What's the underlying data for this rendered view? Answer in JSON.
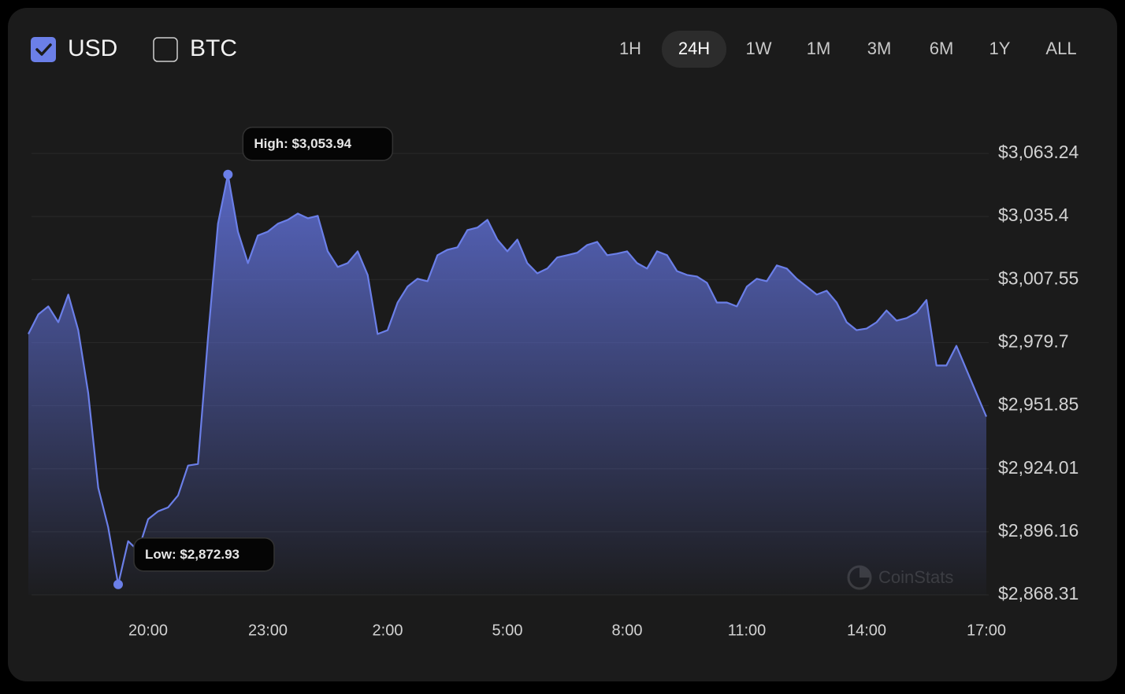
{
  "controls": {
    "currencies": [
      {
        "label": "USD",
        "checked": true
      },
      {
        "label": "BTC",
        "checked": false
      }
    ],
    "ranges": [
      "1H",
      "24H",
      "1W",
      "1M",
      "3M",
      "6M",
      "1Y",
      "ALL"
    ],
    "selected_range": "24H"
  },
  "chart_data": {
    "type": "area",
    "watermark": "CoinStats",
    "x": [
      17.0,
      17.25,
      17.5,
      17.75,
      18.0,
      18.25,
      18.5,
      18.75,
      19.0,
      19.25,
      19.5,
      19.75,
      20.0,
      20.25,
      20.5,
      20.75,
      21.0,
      21.25,
      21.5,
      21.75,
      22.0,
      22.25,
      22.5,
      22.75,
      23.0,
      23.25,
      23.5,
      23.75,
      24.0,
      24.25,
      24.5,
      24.75,
      25.0,
      25.25,
      25.5,
      25.75,
      26.0,
      26.25,
      26.5,
      26.75,
      27.0,
      27.25,
      27.5,
      27.75,
      28.0,
      28.25,
      28.5,
      28.75,
      29.0,
      29.25,
      29.5,
      29.75,
      30.0,
      30.25,
      30.5,
      30.75,
      31.0,
      31.25,
      31.5,
      31.75,
      32.0,
      32.25,
      32.5,
      32.75,
      33.0,
      33.25,
      33.5,
      33.75,
      34.0,
      34.25,
      34.5,
      34.75,
      35.0,
      35.25,
      35.5,
      35.75,
      36.0,
      36.25,
      36.5,
      36.75,
      37.0,
      37.25,
      37.5,
      37.75,
      38.0,
      38.25,
      38.5,
      38.75,
      39.0,
      39.25,
      39.5,
      39.75,
      40.0,
      40.25,
      40.5,
      40.75,
      41.0
    ],
    "series": [
      {
        "name": "Price",
        "color": "#6b7fe8",
        "values": [
          2983.5,
          2992.2,
          2995.7,
          2988.7,
          3000.9,
          2985.2,
          2957.4,
          2915.6,
          2898.2,
          2872.93,
          2892.0,
          2887.8,
          2901.7,
          2905.2,
          2906.9,
          2912.2,
          2925.4,
          2926.1,
          2981.8,
          3032.2,
          3053.94,
          3028.7,
          3014.8,
          3027.0,
          3028.7,
          3032.2,
          3033.9,
          3036.7,
          3034.6,
          3035.7,
          3020.0,
          3013.1,
          3014.8,
          3020.0,
          3009.6,
          2983.5,
          2985.2,
          2997.4,
          3004.4,
          3007.9,
          3006.8,
          3018.3,
          3020.7,
          3021.8,
          3029.4,
          3030.5,
          3033.9,
          3025.2,
          3020.0,
          3025.2,
          3014.8,
          3010.3,
          3012.4,
          3017.3,
          3018.3,
          3019.4,
          3022.8,
          3024.2,
          3018.3,
          3019.0,
          3020.0,
          3014.8,
          3012.4,
          3020.0,
          3018.3,
          3011.3,
          3009.6,
          3008.9,
          3006.1,
          2997.4,
          2997.4,
          2995.7,
          3004.4,
          3007.9,
          3006.8,
          3013.8,
          3012.4,
          3007.9,
          3004.4,
          3000.9,
          3002.6,
          2997.4,
          2988.7,
          2985.2,
          2985.9,
          2988.7,
          2993.9,
          2989.4,
          2990.5,
          2992.9,
          2998.5,
          2969.6,
          2969.6,
          2978.3,
          2967.8,
          2957.4,
          2947.0
        ]
      }
    ],
    "annotations": [
      {
        "label": "High: $3,053.94",
        "x": 22.0,
        "value": 3053.94
      },
      {
        "label": "Low: $2,872.93",
        "x": 19.25,
        "value": 2872.93
      }
    ],
    "xlim": [
      17,
      41
    ],
    "xticks": [
      {
        "value": 20,
        "label": "20:00"
      },
      {
        "value": 23,
        "label": "23:00"
      },
      {
        "value": 26,
        "label": "2:00"
      },
      {
        "value": 29,
        "label": "5:00"
      },
      {
        "value": 32,
        "label": "8:00"
      },
      {
        "value": 35,
        "label": "11:00"
      },
      {
        "value": 38,
        "label": "14:00"
      },
      {
        "value": 41,
        "label": "17:00"
      }
    ],
    "ylim": [
      2868.31,
      3063.24
    ],
    "yticks": [
      {
        "value": 3063.24,
        "label": "$3,063.24"
      },
      {
        "value": 3035.4,
        "label": "$3,035.4"
      },
      {
        "value": 3007.55,
        "label": "$3,007.55"
      },
      {
        "value": 2979.7,
        "label": "$2,979.7"
      },
      {
        "value": 2951.85,
        "label": "$2,951.85"
      },
      {
        "value": 2924.01,
        "label": "$2,924.01"
      },
      {
        "value": 2896.16,
        "label": "$2,896.16"
      },
      {
        "value": 2868.31,
        "label": "$2,868.31"
      }
    ],
    "grid": true
  }
}
